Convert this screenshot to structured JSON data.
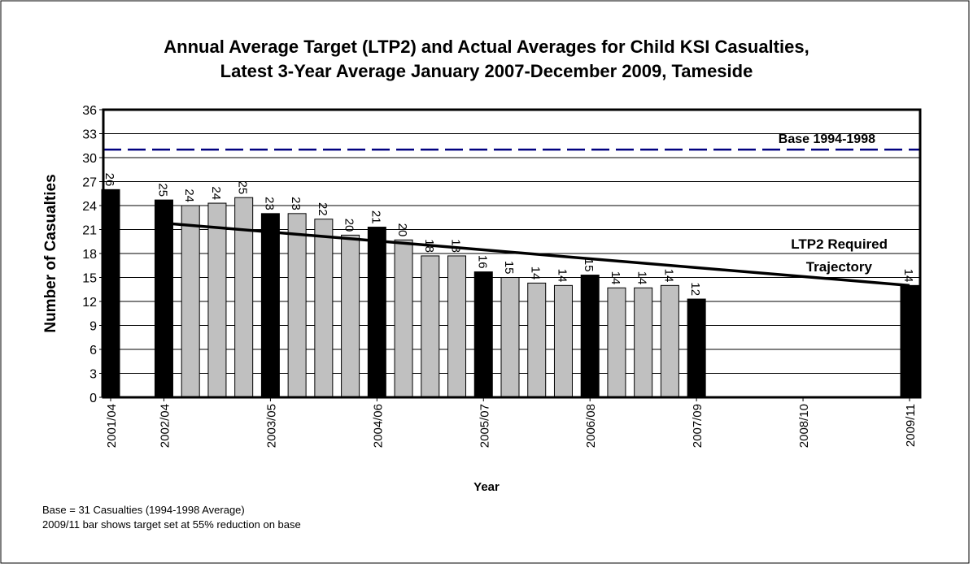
{
  "chart_data": {
    "type": "bar",
    "title": [
      "Annual Average Target (LTP2) and Actual Averages for Child KSI Casualties,",
      "Latest 3-Year Average January 2007-December 2009, Tameside"
    ],
    "y_label": "Number of Casualties",
    "x_label": "Year",
    "categories": [
      "2001/04",
      null,
      "2002/04",
      null,
      null,
      null,
      "2003/05",
      null,
      null,
      null,
      "2004/06",
      null,
      null,
      null,
      "2005/07",
      null,
      null,
      null,
      "2006/08",
      null,
      null,
      null,
      "2007/09",
      null,
      null,
      null,
      "2008/10",
      null,
      null,
      null,
      "2009/11"
    ],
    "values": [
      26,
      null,
      24.7,
      24,
      24.3,
      25,
      23,
      23,
      22.3,
      20.3,
      21.3,
      19.7,
      17.7,
      17.7,
      15.7,
      15,
      14.3,
      14,
      15.3,
      13.7,
      13.7,
      14,
      12.3,
      null,
      null,
      null,
      null,
      null,
      null,
      null,
      14
    ],
    "value_labels": [
      "26",
      null,
      "25",
      "24",
      "24",
      "25",
      "23",
      "23",
      "22",
      "20",
      "21",
      "20",
      "18",
      "18",
      "16",
      "15",
      "14",
      "14",
      "15",
      "14",
      "14",
      "14",
      "12",
      null,
      null,
      null,
      null,
      null,
      null,
      null,
      "14"
    ],
    "colors": [
      "#000000",
      null,
      "#000000",
      "#c0c0c0",
      "#c0c0c0",
      "#c0c0c0",
      "#000000",
      "#c0c0c0",
      "#c0c0c0",
      "#c0c0c0",
      "#000000",
      "#c0c0c0",
      "#c0c0c0",
      "#c0c0c0",
      "#000000",
      "#c0c0c0",
      "#c0c0c0",
      "#c0c0c0",
      "#000000",
      "#c0c0c0",
      "#c0c0c0",
      "#c0c0c0",
      "#000000",
      null,
      null,
      null,
      null,
      null,
      null,
      null,
      "#000000"
    ],
    "ylim": [
      0,
      36
    ],
    "yticks": [
      0,
      3,
      6,
      9,
      12,
      15,
      18,
      21,
      24,
      27,
      30,
      33,
      36
    ],
    "grid": true,
    "base_line": {
      "label": "Base 1994-1998",
      "value": 31,
      "color": "#000080"
    },
    "trajectory": {
      "label": [
        "LTP2 Required",
        "Trajectory"
      ],
      "x": [
        2,
        30
      ],
      "values": [
        21.8,
        14
      ],
      "color": "#000000"
    },
    "notes": [
      "Base = 31 Casualties (1994-1998 Average)",
      "2009/11 bar shows target set at 55% reduction on base"
    ]
  }
}
